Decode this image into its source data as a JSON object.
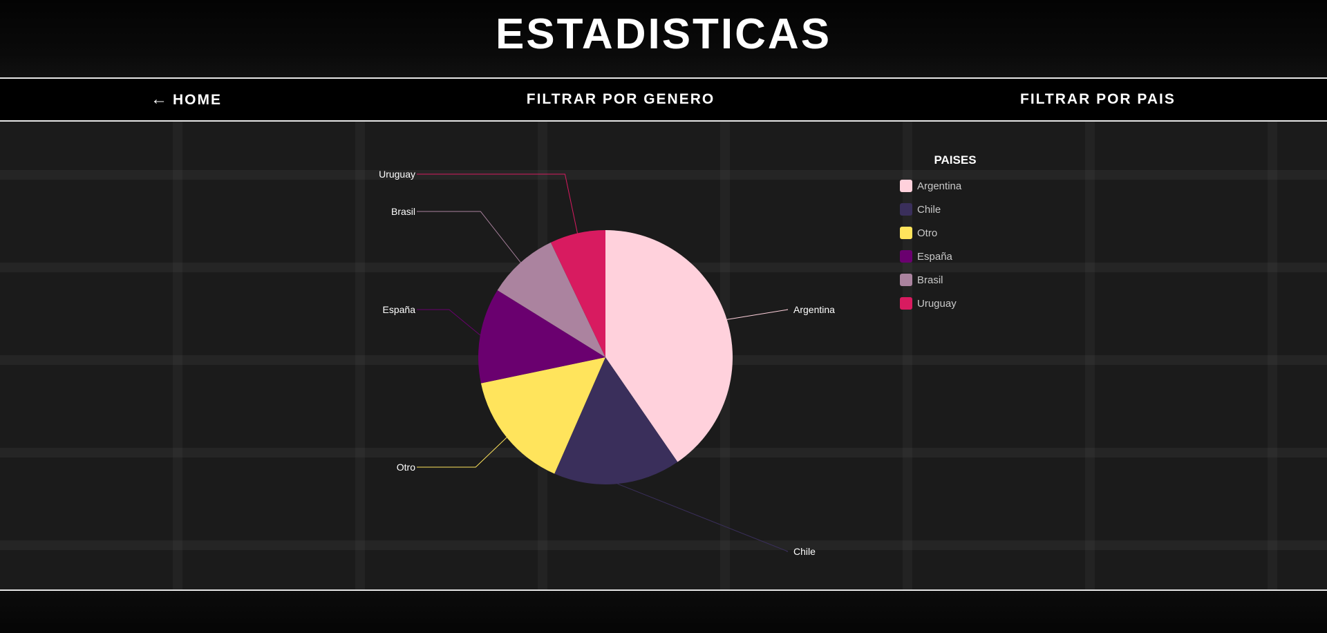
{
  "header": {
    "title": "ESTADISTICAS"
  },
  "nav": {
    "home_arrow": "←",
    "home_label": "HOME",
    "genero_label": "FILTRAR POR GENERO",
    "pais_label": "FILTRAR POR PAIS"
  },
  "legend": {
    "title": "PAISES",
    "items": [
      {
        "label": "Argentina",
        "color": "#ffd1dc"
      },
      {
        "label": "Chile",
        "color": "#3a2f5b"
      },
      {
        "label": "Otro",
        "color": "#ffe45c"
      },
      {
        "label": "España",
        "color": "#6a006f"
      },
      {
        "label": "Brasil",
        "color": "#ab839f"
      },
      {
        "label": "Uruguay",
        "color": "#d81b60"
      }
    ]
  },
  "chart_data": {
    "type": "pie",
    "title": "",
    "legend_title": "PAISES",
    "legend_position": "right",
    "categories": [
      "Argentina",
      "Chile",
      "Otro",
      "España",
      "Brasil",
      "Uruguay"
    ],
    "values": [
      40,
      16,
      15,
      12,
      9,
      7
    ],
    "colors": [
      "#ffd1dc",
      "#3a2f5b",
      "#ffe45c",
      "#6a006f",
      "#ab839f",
      "#d81b60"
    ]
  }
}
